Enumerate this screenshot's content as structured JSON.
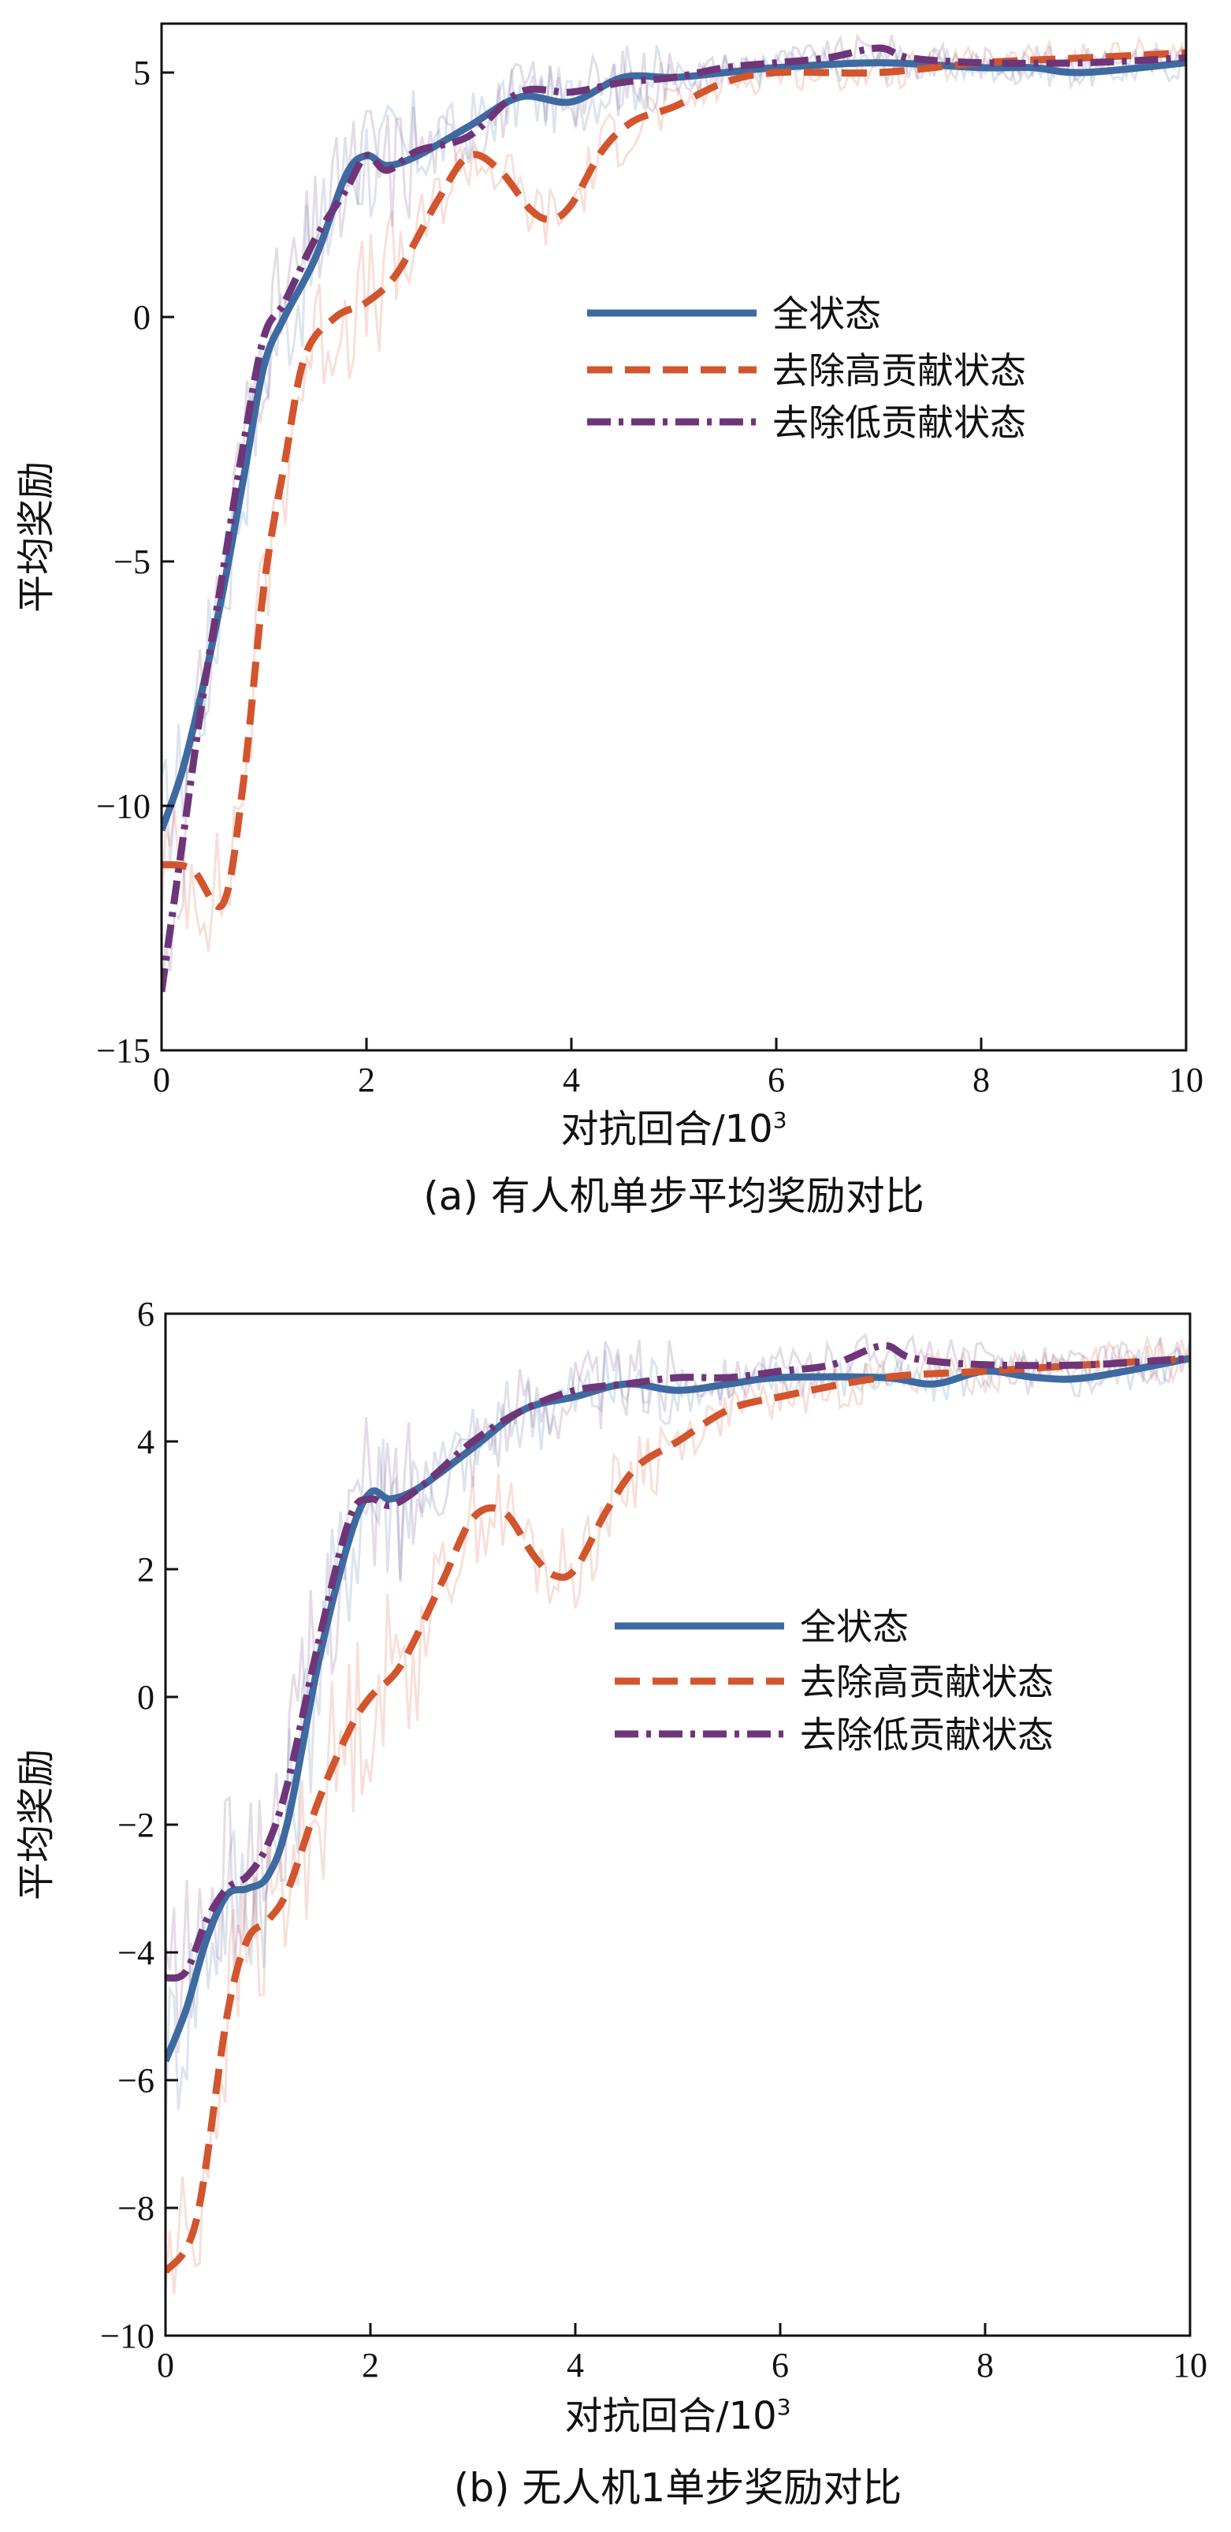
{
  "chart_data": [
    {
      "type": "line",
      "caption": "(a) 有人机单步平均奖励对比",
      "xlabel": "对抗回合/10",
      "xlabel_sup": "3",
      "ylabel": "平均奖励",
      "xlim": [
        0,
        10
      ],
      "ylim": [
        -15,
        6
      ],
      "xticks": [
        0,
        2,
        4,
        6,
        8,
        10
      ],
      "yticks": [
        -15,
        -10,
        -5,
        0,
        5
      ],
      "legend_position": "center-right",
      "series": [
        {
          "name": "全状态",
          "color": "#3e6aa2",
          "style": "solid",
          "x": [
            0,
            0.2,
            0.4,
            0.6,
            0.8,
            1.0,
            1.2,
            1.5,
            1.8,
            2.0,
            2.2,
            2.5,
            3.0,
            3.5,
            4.0,
            4.5,
            5.0,
            5.5,
            6.0,
            7.0,
            8.0,
            8.5,
            9.0,
            10.0
          ],
          "y": [
            -10.5,
            -9.3,
            -7.6,
            -5.6,
            -3.3,
            -1.0,
            0.0,
            1.2,
            2.9,
            3.3,
            3.1,
            3.3,
            3.9,
            4.5,
            4.4,
            4.9,
            4.9,
            5.0,
            5.1,
            5.2,
            5.1,
            5.1,
            5.0,
            5.2
          ]
        },
        {
          "name": "去除高贡献状态",
          "color": "#d2552d",
          "style": "dashed",
          "x": [
            0,
            0.3,
            0.6,
            0.8,
            1.0,
            1.2,
            1.4,
            1.7,
            2.0,
            2.3,
            2.7,
            3.0,
            3.3,
            3.6,
            3.8,
            4.0,
            4.3,
            4.6,
            5.0,
            5.5,
            6.0,
            7.0,
            8.0,
            9.0,
            10.0
          ],
          "y": [
            -11.2,
            -11.3,
            -12.0,
            -9.5,
            -5.5,
            -3.0,
            -0.8,
            0.0,
            0.3,
            0.9,
            2.4,
            3.3,
            3.0,
            2.2,
            2.0,
            2.3,
            3.4,
            4.0,
            4.3,
            4.8,
            5.0,
            5.0,
            5.2,
            5.3,
            5.4
          ]
        },
        {
          "name": "去除低贡献状态",
          "color": "#6e3578",
          "style": "dashdot",
          "x": [
            0,
            0.2,
            0.4,
            0.6,
            0.8,
            1.0,
            1.2,
            1.5,
            1.8,
            2.0,
            2.2,
            2.5,
            3.0,
            3.5,
            4.0,
            4.5,
            5.0,
            5.5,
            6.0,
            6.5,
            7.0,
            7.3,
            8.0,
            9.0,
            10.0
          ],
          "y": [
            -13.8,
            -10.8,
            -7.8,
            -5.2,
            -2.6,
            -0.4,
            0.3,
            1.6,
            2.6,
            3.3,
            3.0,
            3.4,
            3.7,
            4.6,
            4.6,
            4.8,
            4.9,
            5.1,
            5.2,
            5.3,
            5.5,
            5.3,
            5.2,
            5.2,
            5.3
          ]
        }
      ]
    },
    {
      "type": "line",
      "caption": "(b) 无人机1单步奖励对比",
      "xlabel": "对抗回合/10",
      "xlabel_sup": "3",
      "ylabel": "平均奖励",
      "xlim": [
        0,
        10
      ],
      "ylim": [
        -10,
        6
      ],
      "xticks": [
        0,
        2,
        4,
        6,
        8,
        10
      ],
      "yticks": [
        -10,
        -8,
        -6,
        -4,
        -2,
        0,
        2,
        4,
        6
      ],
      "legend_position": "center-right",
      "series": [
        {
          "name": "全状态",
          "color": "#3e6aa2",
          "style": "solid",
          "x": [
            0,
            0.2,
            0.4,
            0.6,
            0.8,
            1.0,
            1.2,
            1.5,
            1.8,
            2.0,
            2.2,
            2.5,
            3.0,
            3.5,
            4.0,
            4.5,
            5.0,
            5.5,
            6.0,
            7.0,
            7.5,
            8.0,
            8.5,
            9.0,
            10.0
          ],
          "y": [
            -5.7,
            -4.9,
            -3.8,
            -3.1,
            -3.0,
            -2.8,
            -1.9,
            0.6,
            2.5,
            3.2,
            3.1,
            3.3,
            3.9,
            4.5,
            4.7,
            4.9,
            4.8,
            4.9,
            5.0,
            5.0,
            4.9,
            5.1,
            5.0,
            5.0,
            5.3
          ]
        },
        {
          "name": "去除高贡献状态",
          "color": "#d2552d",
          "style": "dashed",
          "x": [
            0,
            0.3,
            0.6,
            0.8,
            1.0,
            1.2,
            1.5,
            1.8,
            2.0,
            2.3,
            2.7,
            3.0,
            3.3,
            3.6,
            3.8,
            4.0,
            4.3,
            4.6,
            5.0,
            5.5,
            6.0,
            7.0,
            8.0,
            9.0,
            10.0
          ],
          "y": [
            -9.0,
            -8.2,
            -5.0,
            -3.8,
            -3.5,
            -3.0,
            -1.6,
            -0.5,
            0.0,
            0.5,
            1.8,
            2.8,
            2.9,
            2.2,
            1.9,
            2.0,
            2.9,
            3.6,
            4.0,
            4.5,
            4.7,
            5.0,
            5.1,
            5.2,
            5.3
          ]
        },
        {
          "name": "去除低贡献状态",
          "color": "#6e3578",
          "style": "dashdot",
          "x": [
            0,
            0.2,
            0.4,
            0.6,
            0.8,
            1.0,
            1.2,
            1.5,
            1.8,
            2.0,
            2.2,
            2.5,
            3.0,
            3.5,
            4.0,
            4.5,
            5.0,
            5.5,
            6.0,
            6.5,
            7.0,
            7.3,
            8.0,
            9.0,
            10.0
          ],
          "y": [
            -4.4,
            -4.3,
            -3.5,
            -3.0,
            -2.8,
            -2.3,
            -1.3,
            0.9,
            2.8,
            3.1,
            3.0,
            3.3,
            4.0,
            4.5,
            4.8,
            4.9,
            5.0,
            5.0,
            5.1,
            5.2,
            5.5,
            5.3,
            5.2,
            5.2,
            5.3
          ]
        }
      ]
    }
  ]
}
